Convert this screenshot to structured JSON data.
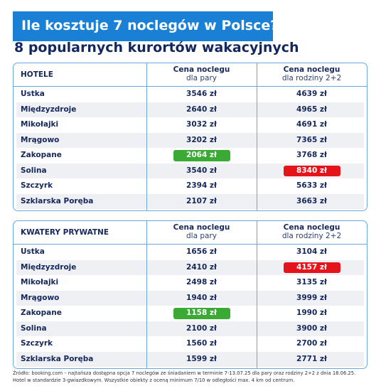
{
  "header": {
    "title": "Ile kosztuje 7 noclegów w Polsce?",
    "subtitle": "8 popularnych kurortów wakacyjnych"
  },
  "tables": [
    {
      "columns": [
        {
          "title": "HOTELE"
        },
        {
          "title": "Cena noclegu",
          "subtitle": "dla pary"
        },
        {
          "title": "Cena noclegu",
          "subtitle": "dla rodziny 2+2"
        }
      ],
      "rows": [
        [
          "Ustka",
          "3546 zł",
          "4639 zł"
        ],
        [
          "Międzyzdroje",
          "2640 zł",
          "4965 zł"
        ],
        [
          "Mikołajki",
          "3032 zł",
          "4691 zł"
        ],
        [
          "Mrągowo",
          "3202 zł",
          "7365 zł"
        ],
        [
          "Zakopane",
          "2064 zł",
          "3768 zł"
        ],
        [
          "Solina",
          "3540 zł",
          "8340 zł"
        ],
        [
          "Szczyrk",
          "2394 zł",
          "5633 zł"
        ],
        [
          "Szklarska Poręba",
          "2107 zł",
          "3663 zł"
        ]
      ],
      "highlights": [
        {
          "row": 4,
          "column": 1,
          "color": "#3aaa35"
        },
        {
          "row": 5,
          "column": 2,
          "color": "#e5141b"
        }
      ]
    },
    {
      "columns": [
        {
          "title": "KWATERY PRYWATNE"
        },
        {
          "title": "Cena noclegu",
          "subtitle": "dla pary"
        },
        {
          "title": "Cena noclegu",
          "subtitle": "dla rodziny 2+2"
        }
      ],
      "rows": [
        [
          "Ustka",
          "1656 zł",
          "3104 zł"
        ],
        [
          "Międzyzdroje",
          "2410 zł",
          "4157 zł"
        ],
        [
          "Mikołajki",
          "2498 zł",
          "3135 zł"
        ],
        [
          "Mrągowo",
          "1940 zł",
          "3999 zł"
        ],
        [
          "Zakopane",
          "1158 zł",
          "1990 zł"
        ],
        [
          "Solina",
          "2100 zł",
          "3900 zł"
        ],
        [
          "Szczyrk",
          "1560 zł",
          "2700 zł"
        ],
        [
          "Szklarska Poręba",
          "1599 zł",
          "2771 zł"
        ]
      ],
      "highlights": [
        {
          "row": 4,
          "column": 1,
          "color": "#3aaa35"
        },
        {
          "row": 1,
          "column": 2,
          "color": "#e5141b"
        }
      ]
    }
  ],
  "footnote": [
    "Źródło: booking.com – najtańsza dostępna opcja 7 noclegów ze śniadaniem w terminie 7-13.07.25 dla pary oraz rodziny 2+2 z dnia 18.06.25.",
    "Hotel w standardzie 3-gwiazdkowym. Wszystkie obiekty z oceną minimum 7/10 w odległości max. 4 km od centrum."
  ]
}
